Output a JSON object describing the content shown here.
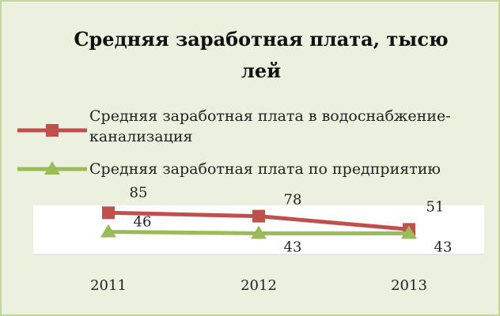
{
  "chart_data": {
    "type": "line",
    "title": "Средняя заработная плата, тысю лей",
    "categories": [
      "2011",
      "2012",
      "2013"
    ],
    "series": [
      {
        "name": "Средняя заработная плата в водоснабжение-канализация",
        "color": "#c0504d",
        "marker": "square",
        "values": [
          85,
          78,
          51
        ]
      },
      {
        "name": "Средняя заработная плата по предприятию",
        "color": "#9bbb59",
        "marker": "triangle",
        "values": [
          46,
          43,
          43
        ]
      }
    ],
    "ylim": [
      0,
      100
    ],
    "legend": "top",
    "data_labels": true
  }
}
